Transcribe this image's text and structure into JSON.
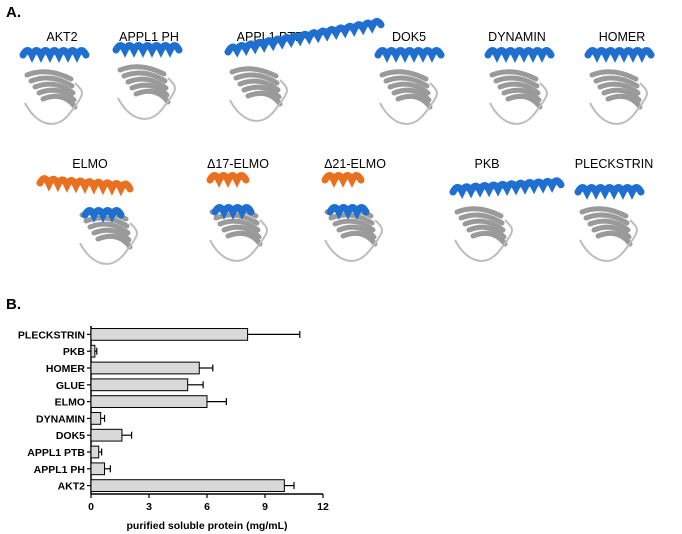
{
  "panel_a": {
    "letter": "A.",
    "structures": [
      {
        "label": "AKT2",
        "helix": "blue"
      },
      {
        "label": "APPL1 PH",
        "helix": "blue"
      },
      {
        "label": "APPL1 PTB",
        "helix": "blue"
      },
      {
        "label": "DOK5",
        "helix": "blue"
      },
      {
        "label": "DYNAMIN",
        "helix": "blue"
      },
      {
        "label": "HOMER",
        "helix": "blue"
      },
      {
        "label": "ELMO",
        "helix": "orange+blue"
      },
      {
        "label": "Δ17-ELMO",
        "helix": "orange+blue"
      },
      {
        "label": "Δ21-ELMO",
        "helix": "orange+blue"
      },
      {
        "label": "PKB",
        "helix": "blue"
      },
      {
        "label": "PLECKSTRIN",
        "helix": "blue"
      }
    ],
    "colors": {
      "helix_blue": "#1f6fd1",
      "helix_orange": "#e8701f",
      "body_gray": "#9a9a9a"
    }
  },
  "panel_b": {
    "letter": "B.",
    "chart_data": {
      "type": "bar",
      "orientation": "horizontal",
      "categories": [
        "PLECKSTRIN",
        "PKB",
        "HOMER",
        "GLUE",
        "ELMO",
        "DYNAMIN",
        "DOK5",
        "APPL1 PTB",
        "APPL1 PH",
        "AKT2"
      ],
      "values": [
        8.1,
        0.2,
        5.6,
        5.0,
        6.0,
        0.5,
        1.6,
        0.4,
        0.7,
        10.0
      ],
      "errors": [
        2.7,
        0.1,
        0.7,
        0.8,
        1.0,
        0.2,
        0.5,
        0.15,
        0.3,
        0.5
      ],
      "xlabel": "purified soluble protein (mg/mL)",
      "xlim": [
        0,
        12
      ],
      "xticks": [
        0,
        3,
        6,
        9,
        12
      ],
      "bar_color": "#d9d9d9"
    }
  }
}
